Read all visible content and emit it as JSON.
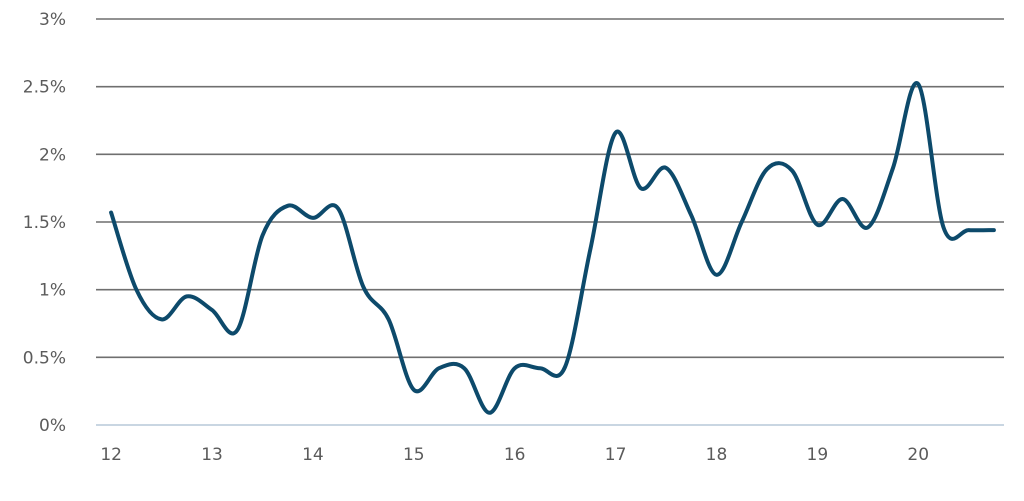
{
  "chart_data": {
    "type": "line",
    "title": "",
    "xlabel": "",
    "ylabel": "",
    "ylim": [
      0,
      3
    ],
    "xlim": [
      11.85,
      20.85
    ],
    "grid": true,
    "legend": "none",
    "y_ticks": [
      {
        "value": 3,
        "label": "3%"
      },
      {
        "value": 2.5,
        "label": "2.5%"
      },
      {
        "value": 2,
        "label": "2%"
      },
      {
        "value": 1.5,
        "label": "1.5%"
      },
      {
        "value": 1,
        "label": "1%"
      },
      {
        "value": 0.5,
        "label": "0.5%"
      },
      {
        "value": 0,
        "label": "0%"
      }
    ],
    "x_ticks": [
      {
        "value": 12,
        "label": "12"
      },
      {
        "value": 13,
        "label": "13"
      },
      {
        "value": 14,
        "label": "14"
      },
      {
        "value": 15,
        "label": "15"
      },
      {
        "value": 16,
        "label": "16"
      },
      {
        "value": 17,
        "label": "17"
      },
      {
        "value": 18,
        "label": "18"
      },
      {
        "value": 19,
        "label": "19"
      },
      {
        "value": 20,
        "label": "20"
      }
    ],
    "series": [
      {
        "color": "#0d4a6b",
        "x": [
          12.0,
          12.25,
          12.5,
          12.75,
          13.0,
          13.25,
          13.5,
          13.75,
          14.0,
          14.25,
          14.5,
          14.75,
          15.0,
          15.25,
          15.5,
          15.75,
          16.0,
          16.25,
          16.5,
          16.75,
          17.0,
          17.25,
          17.5,
          17.75,
          18.0,
          18.25,
          18.5,
          18.75,
          19.0,
          19.25,
          19.5,
          19.75,
          20.0,
          20.25,
          20.5,
          20.75
        ],
        "values": [
          1.57,
          1.0,
          0.78,
          0.95,
          0.85,
          0.7,
          1.4,
          1.62,
          1.53,
          1.6,
          1.02,
          0.78,
          0.26,
          0.42,
          0.42,
          0.09,
          0.42,
          0.42,
          0.43,
          1.3,
          2.16,
          1.75,
          1.9,
          1.55,
          1.11,
          1.5,
          1.89,
          1.88,
          1.48,
          1.67,
          1.46,
          1.9,
          2.52,
          1.46,
          1.44,
          1.44
        ]
      }
    ]
  }
}
